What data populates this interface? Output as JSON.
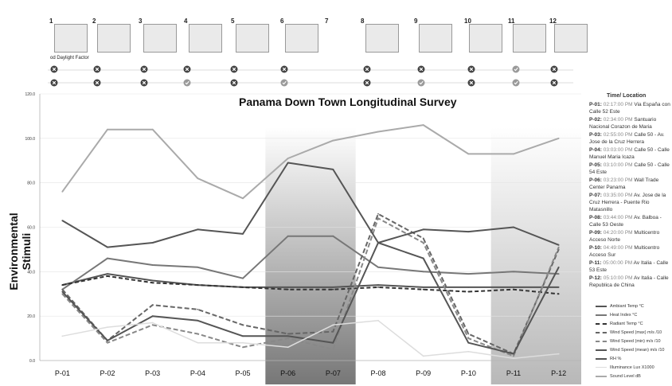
{
  "header": {
    "numbers": [
      "1",
      "2",
      "3",
      "4",
      "5",
      "6",
      "7",
      "8",
      "9",
      "10",
      "11",
      "12"
    ],
    "factor_label": "od Daylight Factor"
  },
  "chart_data": {
    "type": "line",
    "title": "Panama Down Town Longitudinal Survey",
    "ylabel": "Environmental Stimuli",
    "ylim": [
      0,
      120
    ],
    "yticks": [
      "0.0",
      "20.0",
      "40.0",
      "60.0",
      "80.0",
      "100.0",
      "120.0"
    ],
    "categories": [
      "P-01",
      "P-02",
      "P-03",
      "P-04",
      "P-05",
      "P-06",
      "P-07",
      "P-08",
      "P-09",
      "P-10",
      "P-11",
      "P-12"
    ],
    "shaded": [
      "P-06",
      "P-07",
      "P-11",
      "P-12"
    ],
    "series": [
      {
        "name": "Ambiant Temp °C",
        "color": "#555555",
        "dash": "",
        "width": 2,
        "values": [
          34,
          39,
          36,
          34,
          33,
          33,
          33,
          34,
          33,
          33,
          33,
          33
        ]
      },
      {
        "name": "Heat Index °C",
        "color": "#777777",
        "dash": "",
        "width": 2,
        "values": [
          32,
          46,
          43,
          42,
          37,
          56,
          56,
          42,
          40,
          39,
          40,
          39
        ]
      },
      {
        "name": "Radiant Temp °C",
        "color": "#333333",
        "dash": "5,3",
        "width": 2,
        "values": [
          34,
          38,
          35,
          34,
          33,
          32,
          32,
          33,
          32,
          31,
          32,
          30
        ]
      },
      {
        "name": "Wind Speed (max) m/s /10",
        "color": "#666666",
        "dash": "6,3",
        "width": 2,
        "values": [
          32,
          9,
          25,
          23,
          16,
          12,
          13,
          66,
          55,
          12,
          3,
          50
        ]
      },
      {
        "name": "Wind Speed (min) m/s /10",
        "color": "#888888",
        "dash": "6,3",
        "width": 2,
        "values": [
          30,
          8,
          16,
          12,
          6,
          10,
          5,
          64,
          53,
          10,
          2,
          51
        ]
      },
      {
        "name": "Wind Speed (mean) m/s /10",
        "color": "#555555",
        "dash": "",
        "width": 2,
        "values": [
          31,
          9,
          20,
          18,
          11,
          11,
          8,
          53,
          59,
          58,
          60,
          52
        ]
      },
      {
        "name": "RH %",
        "color": "#555555",
        "dash": "",
        "width": 2,
        "values": [
          63,
          51,
          53,
          59,
          57,
          89,
          86,
          53,
          46,
          8,
          3,
          42
        ]
      },
      {
        "name": "Illuminance Lux X1000",
        "color": "#dddddd",
        "dash": "",
        "width": 1.5,
        "values": [
          11,
          15,
          17,
          8,
          8,
          6,
          16,
          18,
          2,
          4,
          1,
          3
        ]
      },
      {
        "name": "Sound Level dB",
        "color": "#aaaaaa",
        "dash": "",
        "width": 2,
        "values": [
          76,
          104,
          104,
          82,
          73,
          91,
          99,
          103,
          106,
          93,
          93,
          100
        ]
      }
    ]
  },
  "time_location": {
    "title": "Time/ Location",
    "items": [
      {
        "id": "P-01:",
        "time": "02:17:00 PM",
        "place": "Via España con Calle 52 Este"
      },
      {
        "id": "P-02:",
        "time": "02:34:00 PM",
        "place": "Santuario Nacional Corazon de Maria"
      },
      {
        "id": "P-03:",
        "time": "02:55:00 PM",
        "place": "Calle 50 - Av. Jose de la Cruz Herrera"
      },
      {
        "id": "P-04:",
        "time": "03:03:00 PM",
        "place": "Calle 50 - Calle Manuel Maria Icaza"
      },
      {
        "id": "P-05:",
        "time": "03:10:00 PM",
        "place": "Calle 50 - Calle 54 Este"
      },
      {
        "id": "P-06:",
        "time": "03:23:00 PM",
        "place": "Wall Trade Center Panama"
      },
      {
        "id": "P-07:",
        "time": "03:35:00 PM",
        "place": "Av. Jose de la Cruz Herrera - Puente Rio Matasnillo"
      },
      {
        "id": "P-08:",
        "time": "03:44:00 PM",
        "place": "Av. Balboa - Calle 53 Oeste"
      },
      {
        "id": "P-09:",
        "time": "04:20:00 PM",
        "place": "Multicentro Acceso Norte"
      },
      {
        "id": "P-10:",
        "time": "04:49:00 PM",
        "place": "Multicentro Acceso Sur"
      },
      {
        "id": "P-11:",
        "time": "05:00:00 PM",
        "place": "Av Italia - Calle 53 Este"
      },
      {
        "id": "P-12:",
        "time": "05:10:00 PM",
        "place": "Av Italia - Calle Republica de China"
      }
    ]
  }
}
